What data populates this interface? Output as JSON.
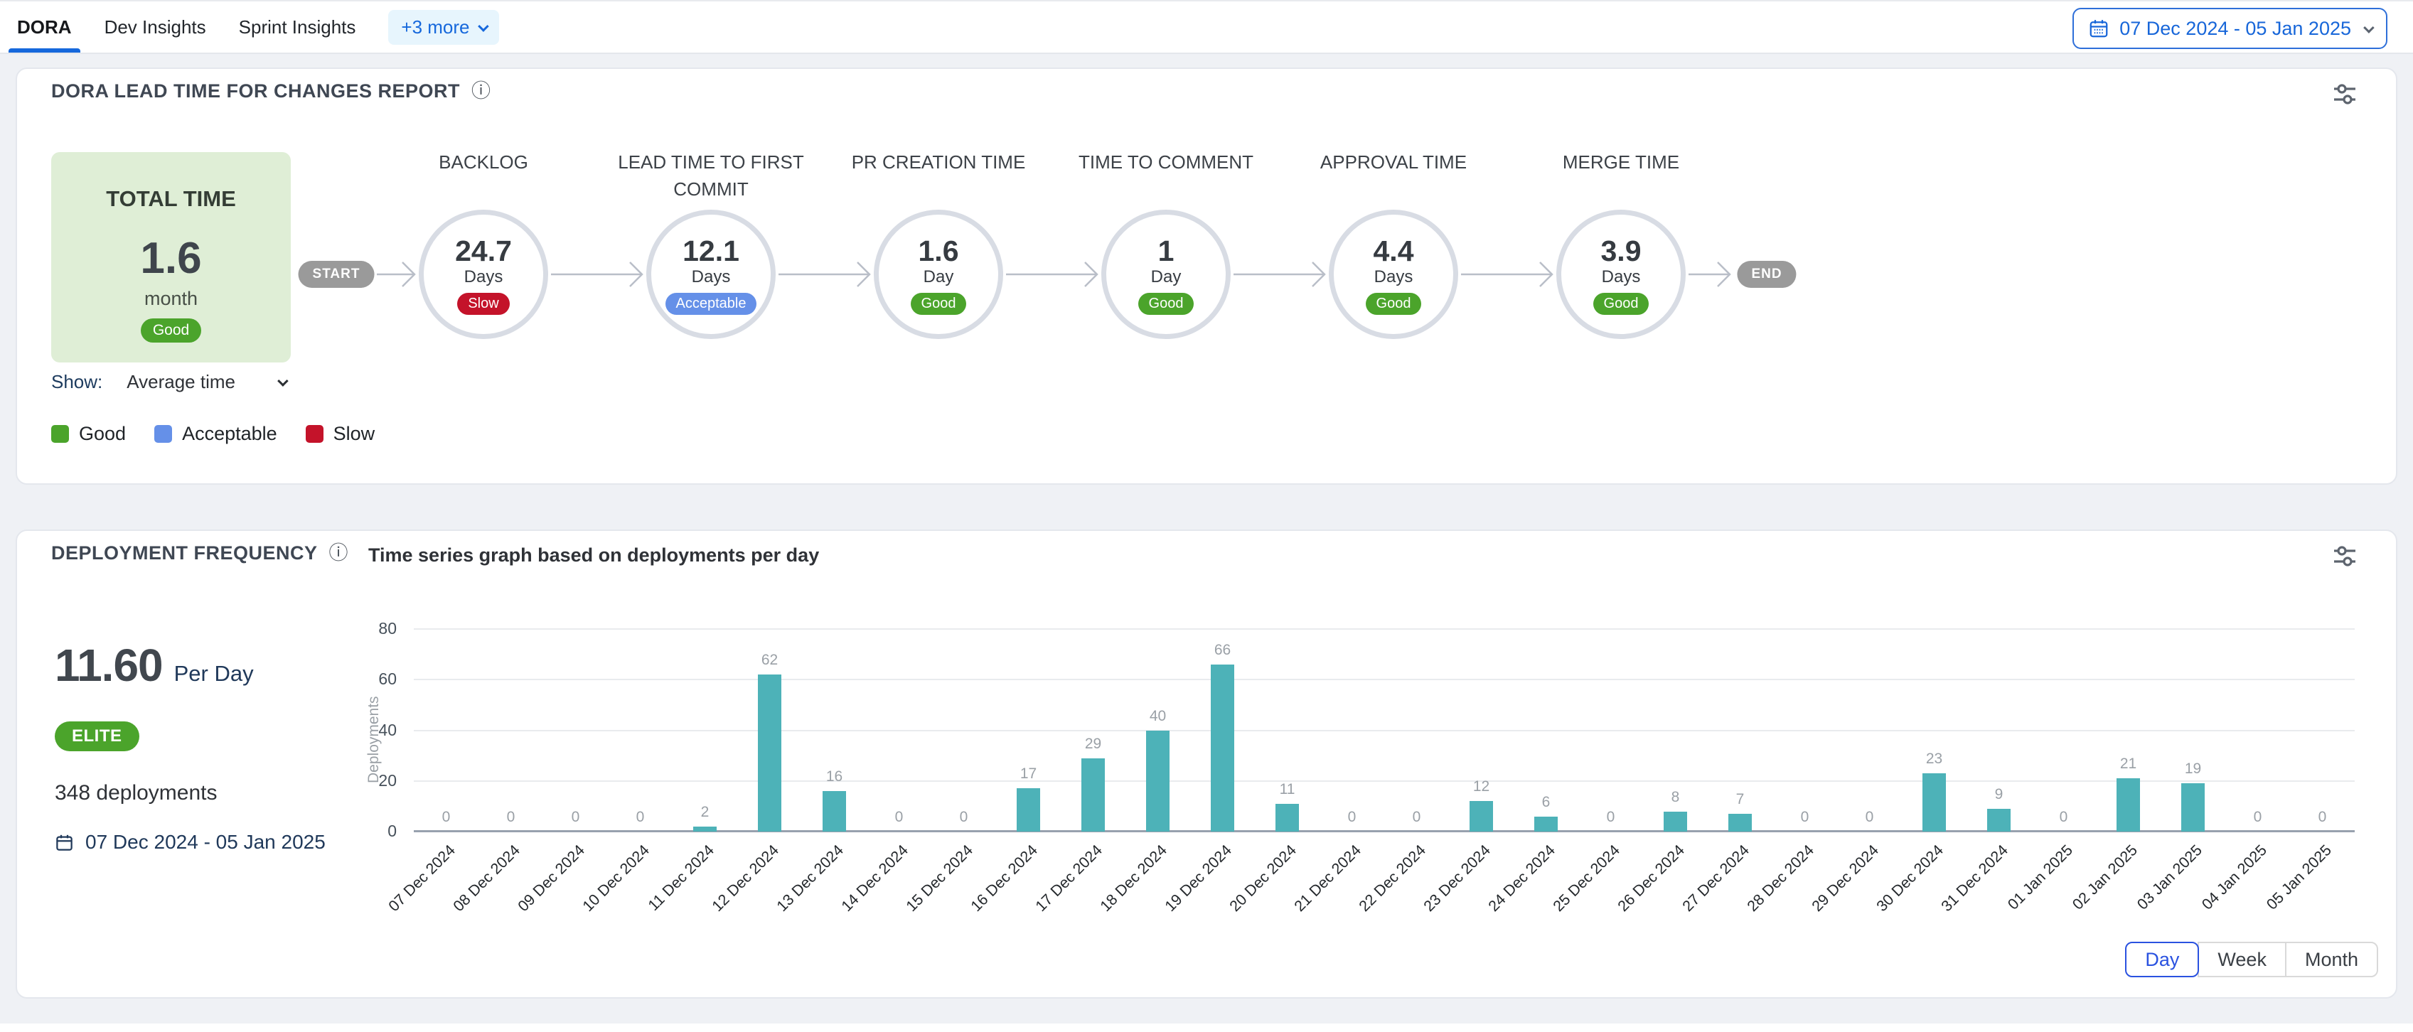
{
  "header": {
    "tabs": [
      {
        "label": "DORA",
        "active": true
      },
      {
        "label": "Dev Insights",
        "active": false
      },
      {
        "label": "Sprint Insights",
        "active": false
      }
    ],
    "more_label": "+3 more",
    "date_range": "07 Dec 2024 - 05 Jan 2025"
  },
  "status_colors": {
    "good": "#4ba42b",
    "acceptable": "#6590e8",
    "slow": "#c4132a"
  },
  "lead_time_report": {
    "title": "DORA LEAD TIME FOR CHANGES REPORT",
    "total": {
      "label": "TOTAL TIME",
      "value": "1.6",
      "unit": "month",
      "badge": "Good"
    },
    "start_label": "START",
    "end_label": "END",
    "stages": [
      {
        "name": "BACKLOG",
        "value": "24.7",
        "unit": "Days",
        "badge": "Slow"
      },
      {
        "name": "LEAD TIME TO FIRST COMMIT",
        "value": "12.1",
        "unit": "Days",
        "badge": "Acceptable"
      },
      {
        "name": "PR CREATION TIME",
        "value": "1.6",
        "unit": "Day",
        "badge": "Good"
      },
      {
        "name": "TIME TO COMMENT",
        "value": "1",
        "unit": "Day",
        "badge": "Good"
      },
      {
        "name": "APPROVAL TIME",
        "value": "4.4",
        "unit": "Days",
        "badge": "Good"
      },
      {
        "name": "MERGE TIME",
        "value": "3.9",
        "unit": "Days",
        "badge": "Good"
      }
    ],
    "show_label": "Show:",
    "show_value": "Average time",
    "legend": [
      "Good",
      "Acceptable",
      "Slow"
    ]
  },
  "deployment_frequency": {
    "title": "DEPLOYMENT FREQUENCY",
    "subtitle": "Time series graph based on deployments per day",
    "rate_value": "11.60",
    "rate_unit": "Per Day",
    "tier_badge": "ELITE",
    "total_text": "348 deployments",
    "date_range": "07 Dec 2024 - 05 Jan 2025",
    "granularity": [
      {
        "label": "Day",
        "active": true
      },
      {
        "label": "Week",
        "active": false
      },
      {
        "label": "Month",
        "active": false
      }
    ]
  },
  "chart_data": {
    "type": "bar",
    "title": "Time series graph based on deployments per day",
    "xlabel": "",
    "ylabel": "Deployments",
    "ylim": [
      0,
      80
    ],
    "yticks": [
      0,
      20,
      40,
      60,
      80
    ],
    "grid": true,
    "bar_color": "#4db2b8",
    "categories": [
      "07 Dec 2024",
      "08 Dec 2024",
      "09 Dec 2024",
      "10 Dec 2024",
      "11 Dec 2024",
      "12 Dec 2024",
      "13 Dec 2024",
      "14 Dec 2024",
      "15 Dec 2024",
      "16 Dec 2024",
      "17 Dec 2024",
      "18 Dec 2024",
      "19 Dec 2024",
      "20 Dec 2024",
      "21 Dec 2024",
      "22 Dec 2024",
      "23 Dec 2024",
      "24 Dec 2024",
      "25 Dec 2024",
      "26 Dec 2024",
      "27 Dec 2024",
      "28 Dec 2024",
      "29 Dec 2024",
      "30 Dec 2024",
      "31 Dec 2024",
      "01 Jan 2025",
      "02 Jan 2025",
      "03 Jan 2025",
      "04 Jan 2025",
      "05 Jan 2025"
    ],
    "values": [
      0,
      0,
      0,
      0,
      2,
      62,
      16,
      0,
      0,
      17,
      29,
      40,
      66,
      11,
      0,
      0,
      12,
      6,
      0,
      8,
      7,
      0,
      0,
      23,
      9,
      0,
      21,
      19,
      0,
      0
    ]
  }
}
